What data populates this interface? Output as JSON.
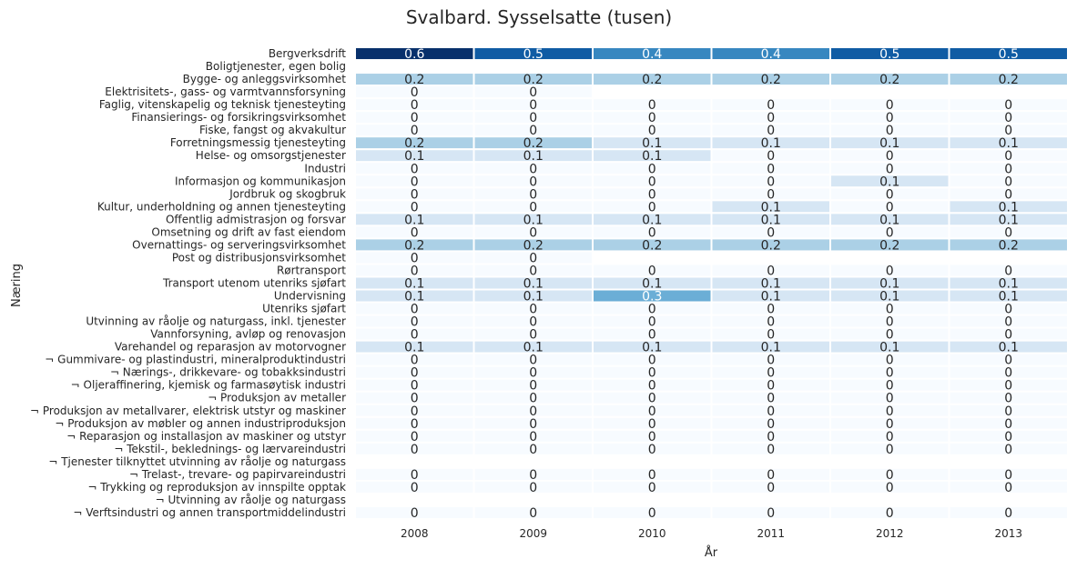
{
  "chart_data": {
    "type": "heatmap",
    "title": "Svalbard. Sysselsatte (tusen)",
    "xlabel": "År",
    "ylabel": "Næring",
    "colormap": "Blues",
    "vmin": 0,
    "vmax": 0.6,
    "x": [
      "2008",
      "2009",
      "2010",
      "2011",
      "2012",
      "2013"
    ],
    "y": [
      "Bergverksdrift",
      "Boligtjenester, egen bolig",
      "Bygge- og anleggsvirksomhet",
      "Elektrisitets-, gass- og varmtvannsforsyning",
      "Faglig, vitenskapelig og teknisk tjenesteyting",
      "Finansierings- og forsikringsvirksomhet",
      "Fiske, fangst og akvakultur",
      "Forretningsmessig tjenesteyting",
      "Helse- og omsorgstjenester",
      "Industri",
      "Informasjon og kommunikasjon",
      "Jordbruk og skogbruk",
      "Kultur, underholdning og annen tjenesteyting",
      "Offentlig admistrasjon og forsvar",
      "Omsetning og drift av fast eiendom",
      "Overnattings- og serveringsvirksomhet",
      "Post og distribusjonsvirksomhet",
      "Rørtransport",
      "Transport utenom utenriks sjøfart",
      "Undervisning",
      "Utenriks sjøfart",
      "Utvinning av råolje og naturgass, inkl. tjenester",
      "Vannforsyning, avløp og renovasjon",
      "Varehandel og reparasjon av motorvogner",
      "¬ Gummivare- og plastindustri, mineralproduktindustri",
      "¬ Nærings-, drikkevare- og tobakksindustri",
      "¬ Oljeraffinering, kjemisk og farmasøytisk industri",
      "¬ Produksjon av metaller",
      "¬ Produksjon av metallvarer, elektrisk utstyr og maskiner",
      "¬ Produksjon av møbler og annen industriproduksjon",
      "¬ Reparasjon og installasjon av maskiner og utstyr",
      "¬ Tekstil-, beklednings- og lærvareindustri",
      "¬ Tjenester tilknyttet utvinning av råolje og naturgass",
      "¬ Trelast-, trevare- og papirvareindustri",
      "¬ Trykking og reproduksjon av innspilte opptak",
      "¬ Utvinning av råolje og naturgass",
      "¬ Verftsindustri og annen transportmiddelindustri"
    ],
    "values": [
      [
        0.6,
        0.5,
        0.4,
        0.4,
        0.5,
        0.5
      ],
      [
        null,
        null,
        null,
        null,
        null,
        null
      ],
      [
        0.2,
        0.2,
        0.2,
        0.2,
        0.2,
        0.2
      ],
      [
        0,
        0,
        null,
        null,
        null,
        null
      ],
      [
        0,
        0,
        0,
        0,
        0,
        0
      ],
      [
        0,
        0,
        0,
        0,
        0,
        0
      ],
      [
        0,
        0,
        0,
        0,
        0,
        0
      ],
      [
        0.2,
        0.2,
        0.1,
        0.1,
        0.1,
        0.1
      ],
      [
        0.1,
        0.1,
        0.1,
        0,
        0,
        0
      ],
      [
        0,
        0,
        0,
        0,
        0,
        0
      ],
      [
        0,
        0,
        0,
        0,
        0.1,
        0
      ],
      [
        0,
        0,
        0,
        0,
        0,
        0
      ],
      [
        0,
        0,
        0,
        0.1,
        0,
        0.1
      ],
      [
        0.1,
        0.1,
        0.1,
        0.1,
        0.1,
        0.1
      ],
      [
        0,
        0,
        0,
        0,
        0,
        0
      ],
      [
        0.2,
        0.2,
        0.2,
        0.2,
        0.2,
        0.2
      ],
      [
        0,
        0,
        null,
        null,
        null,
        null
      ],
      [
        0,
        0,
        0,
        0,
        0,
        0
      ],
      [
        0.1,
        0.1,
        0.1,
        0.1,
        0.1,
        0.1
      ],
      [
        0.1,
        0.1,
        0.3,
        0.1,
        0.1,
        0.1
      ],
      [
        0,
        0,
        0,
        0,
        0,
        0
      ],
      [
        0,
        0,
        0,
        0,
        0,
        0
      ],
      [
        0,
        0,
        0,
        0,
        0,
        0
      ],
      [
        0.1,
        0.1,
        0.1,
        0.1,
        0.1,
        0.1
      ],
      [
        0,
        0,
        0,
        0,
        0,
        0
      ],
      [
        0,
        0,
        0,
        0,
        0,
        0
      ],
      [
        0,
        0,
        0,
        0,
        0,
        0
      ],
      [
        0,
        0,
        0,
        0,
        0,
        0
      ],
      [
        0,
        0,
        0,
        0,
        0,
        0
      ],
      [
        0,
        0,
        0,
        0,
        0,
        0
      ],
      [
        0,
        0,
        0,
        0,
        0,
        0
      ],
      [
        0,
        0,
        0,
        0,
        0,
        0
      ],
      [
        null,
        null,
        null,
        null,
        null,
        null
      ],
      [
        0,
        0,
        0,
        0,
        0,
        0
      ],
      [
        0,
        0,
        0,
        0,
        0,
        0
      ],
      [
        null,
        null,
        null,
        null,
        null,
        null
      ],
      [
        0,
        0,
        0,
        0,
        0,
        0
      ]
    ]
  }
}
